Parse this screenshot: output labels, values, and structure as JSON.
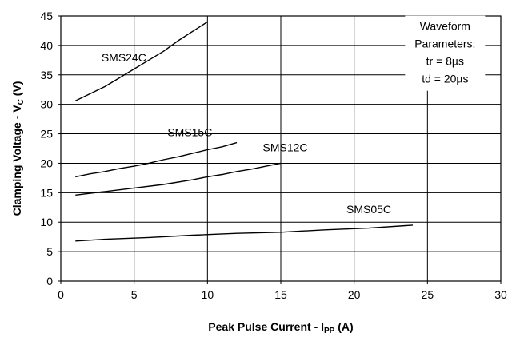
{
  "chart_data": {
    "type": "line",
    "xlabel": "Peak Pulse Current - I",
    "xlabel_sub": "PP",
    "xlabel_suffix": " (A)",
    "ylabel": "Clamping Voltage - V",
    "ylabel_sub": "C",
    "ylabel_suffix": " (V)",
    "xlim": [
      0,
      30
    ],
    "ylim": [
      0,
      45
    ],
    "xticks": [
      0,
      5,
      10,
      15,
      20,
      25,
      30
    ],
    "yticks": [
      0,
      5,
      10,
      15,
      20,
      25,
      30,
      35,
      40,
      45
    ],
    "grid": true,
    "series": [
      {
        "name": "SMS24C",
        "x": [
          1,
          2,
          3,
          4,
          5,
          6,
          7,
          8,
          9,
          10
        ],
        "y": [
          30.6,
          31.8,
          33.0,
          34.5,
          36.0,
          37.5,
          39.0,
          40.8,
          42.4,
          44.0
        ]
      },
      {
        "name": "SMS15C",
        "x": [
          1,
          2,
          3,
          4,
          5,
          6,
          7,
          8,
          9,
          10,
          11,
          12
        ],
        "y": [
          17.7,
          18.2,
          18.6,
          19.1,
          19.5,
          20.0,
          20.6,
          21.1,
          21.7,
          22.3,
          22.8,
          23.5
        ]
      },
      {
        "name": "SMS12C",
        "x": [
          1,
          3,
          5,
          7,
          9,
          10,
          11,
          12,
          13,
          14,
          15
        ],
        "y": [
          14.6,
          15.2,
          15.8,
          16.4,
          17.2,
          17.7,
          18.1,
          18.6,
          19.0,
          19.5,
          20.0
        ]
      },
      {
        "name": "SMS05C",
        "x": [
          1,
          3,
          6,
          9,
          12,
          15,
          18,
          21,
          24
        ],
        "y": [
          6.8,
          7.1,
          7.4,
          7.8,
          8.1,
          8.3,
          8.7,
          9.0,
          9.5
        ]
      }
    ],
    "series_labels": [
      {
        "name": "SMS24C",
        "x": 4.3,
        "y": 37.3
      },
      {
        "name": "SMS15C",
        "x": 8.8,
        "y": 24.6
      },
      {
        "name": "SMS12C",
        "x": 15.3,
        "y": 22.0
      },
      {
        "name": "SMS05C",
        "x": 21.0,
        "y": 11.5
      }
    ],
    "annotation": {
      "lines": [
        "Waveform",
        "Parameters:",
        "tr = 8µs",
        "td = 20µs"
      ],
      "x": 26.2,
      "y": 42.6
    }
  }
}
